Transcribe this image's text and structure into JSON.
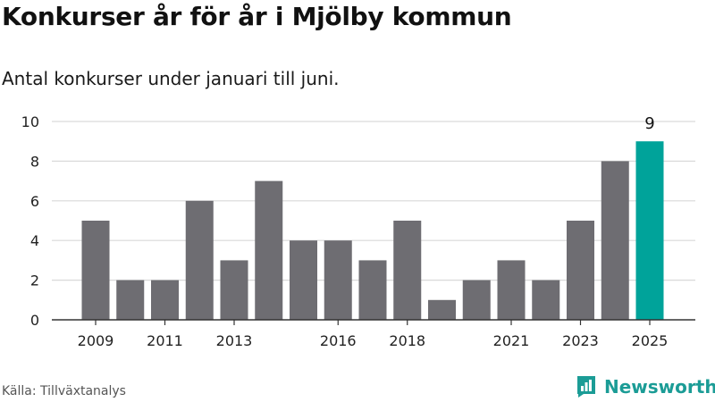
{
  "chart_data": {
    "type": "bar",
    "title": "Konkurser år för år i Mjölby kommun",
    "subtitle": "Antal konkurser under januari till juni.",
    "categories": [
      "2009",
      "2010",
      "2011",
      "2012",
      "2013",
      "2014",
      "2015",
      "2016",
      "2017",
      "2018",
      "2019",
      "2020",
      "2021",
      "2022",
      "2023",
      "2024",
      "2025"
    ],
    "x_tick_labels": [
      "2009",
      "2011",
      "2013",
      "2016",
      "2018",
      "2021",
      "2023",
      "2025"
    ],
    "values": [
      5,
      2,
      2,
      6,
      3,
      7,
      4,
      4,
      3,
      5,
      1,
      2,
      3,
      2,
      5,
      8,
      9
    ],
    "ylim": [
      0,
      10
    ],
    "yticks": [
      0,
      2,
      4,
      6,
      8,
      10
    ],
    "xlabel": "",
    "ylabel": "",
    "grid": true,
    "highlight": {
      "category": "2025",
      "label": "9"
    },
    "colors": {
      "bar": "#6e6d72",
      "highlight": "#00a39a",
      "grid": "#d9d9d9",
      "axis": "#333333"
    }
  },
  "source": "Källa: Tillväxtanalys",
  "brand": {
    "name": "Newsworthy",
    "icon": "newsworthy-logo-icon",
    "color": "#1b9c96"
  }
}
